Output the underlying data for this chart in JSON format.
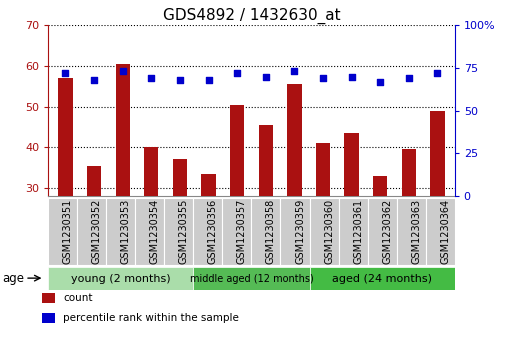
{
  "title": "GDS4892 / 1432630_at",
  "samples": [
    "GSM1230351",
    "GSM1230352",
    "GSM1230353",
    "GSM1230354",
    "GSM1230355",
    "GSM1230356",
    "GSM1230357",
    "GSM1230358",
    "GSM1230359",
    "GSM1230360",
    "GSM1230361",
    "GSM1230362",
    "GSM1230363",
    "GSM1230364"
  ],
  "count_values": [
    57,
    35.5,
    60.5,
    40,
    37,
    33.5,
    50.5,
    45.5,
    55.5,
    41,
    43.5,
    33,
    39.5,
    49
  ],
  "percentile_values": [
    72,
    68,
    73,
    69,
    68,
    68,
    72,
    70,
    73,
    69,
    70,
    67,
    69,
    72
  ],
  "ylim_left": [
    28,
    70
  ],
  "ylim_right": [
    0,
    100
  ],
  "yticks_left": [
    30,
    40,
    50,
    60,
    70
  ],
  "yticks_right": [
    0,
    25,
    50,
    75,
    100
  ],
  "bar_color": "#AA1111",
  "dot_color": "#0000CC",
  "bg_color": "#FFFFFF",
  "title_fontsize": 11,
  "axis_tick_fontsize": 8,
  "sample_fontsize": 7,
  "groups": [
    {
      "label": "young (2 months)",
      "start": 0,
      "end": 5,
      "color": "#AADDAA"
    },
    {
      "label": "middle aged (12 months)",
      "start": 5,
      "end": 9,
      "color": "#66CC66"
    },
    {
      "label": "aged (24 months)",
      "start": 9,
      "end": 14,
      "color": "#44CC44"
    }
  ],
  "age_label": "age",
  "legend": [
    {
      "label": "count",
      "color": "#AA1111"
    },
    {
      "label": "percentile rank within the sample",
      "color": "#0000CC"
    }
  ],
  "grey_box_color": "#CCCCCC",
  "grey_box_edge": "#AAAAAA"
}
